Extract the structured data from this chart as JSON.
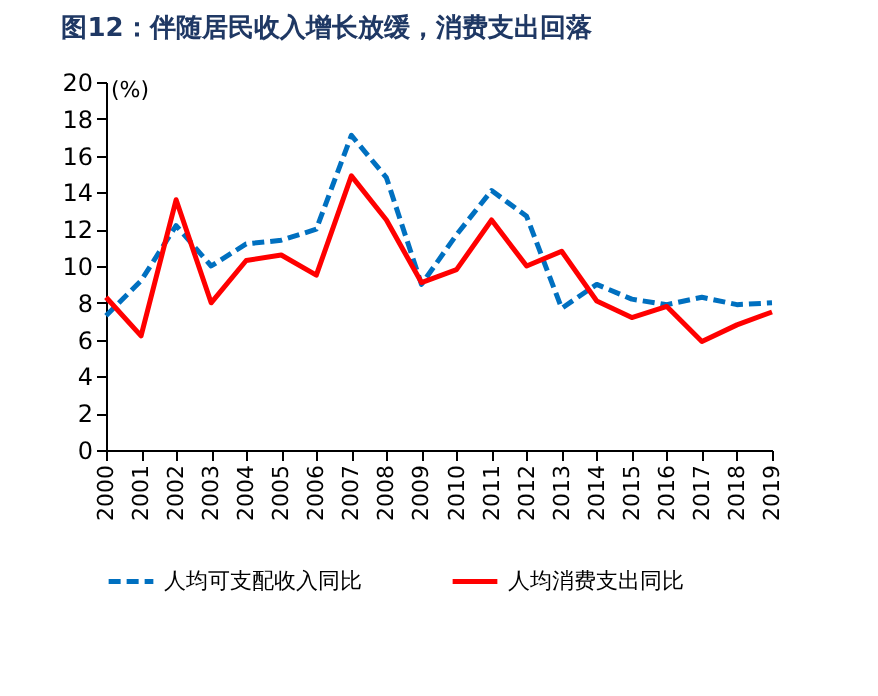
{
  "chart_data": {
    "type": "line",
    "title": "图12：伴随居民收入增长放缓，消费支出回落",
    "ylabel": "(%)",
    "categories": [
      "2000",
      "2001",
      "2002",
      "2003",
      "2004",
      "2005",
      "2006",
      "2007",
      "2008",
      "2009",
      "2010",
      "2011",
      "2012",
      "2013",
      "2014",
      "2015",
      "2016",
      "2017",
      "2018",
      "2019"
    ],
    "series": [
      {
        "name": "人均可支配收入同比",
        "color": "#0070c0",
        "line_style": "dashed",
        "values": [
          7.3,
          9.2,
          12.2,
          10.0,
          11.2,
          11.4,
          12.0,
          17.1,
          14.8,
          9.0,
          11.7,
          14.1,
          12.7,
          7.7,
          9.0,
          8.2,
          7.9,
          8.3,
          7.9,
          8.0
        ]
      },
      {
        "name": "人均消费支出同比",
        "color": "#ff0000",
        "line_style": "solid",
        "values": [
          8.3,
          6.2,
          13.6,
          8.0,
          10.3,
          10.6,
          9.5,
          14.9,
          12.5,
          9.1,
          9.8,
          12.5,
          10.0,
          10.8,
          8.1,
          7.2,
          7.8,
          5.9,
          6.8,
          7.5
        ]
      }
    ],
    "ylim": [
      0,
      20
    ],
    "yticks": [
      0,
      2,
      4,
      6,
      8,
      10,
      12,
      14,
      16,
      18,
      20
    ],
    "legend": "bottom",
    "grid": false
  }
}
